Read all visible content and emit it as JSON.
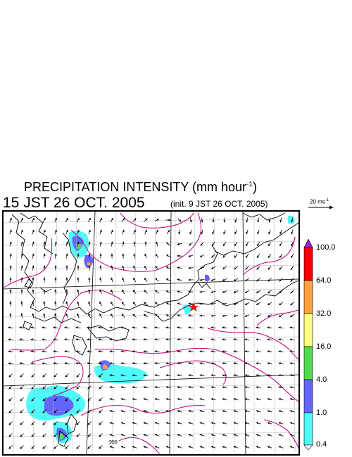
{
  "title": {
    "prefix": "PRECIPITATION INTENSITY (mm hour",
    "exp": "-1",
    "suffix": ")"
  },
  "valid_time": "15 JST 26 OCT. 2005",
  "init_time": "(init. 9 JST 26 OCT. 2005)",
  "vector_scale": {
    "label": "20 ms",
    "exp": "-1"
  },
  "colorbar": {
    "levels": [
      "100.0",
      "64.0",
      "32.0",
      "16.0",
      "4.0",
      "1.0",
      "0.4"
    ],
    "colors": [
      "#9a1fd8",
      "#ff0000",
      "#ffa040",
      "#ffff80",
      "#50dc50",
      "#6464ff",
      "#50fafa",
      "#ffffff"
    ]
  },
  "map": {
    "contour_label": "996",
    "marker_color": "#ff0000",
    "coast_color": "#000000",
    "isobar_color": "#c0007a",
    "grid_color": "#b4b4b4"
  }
}
